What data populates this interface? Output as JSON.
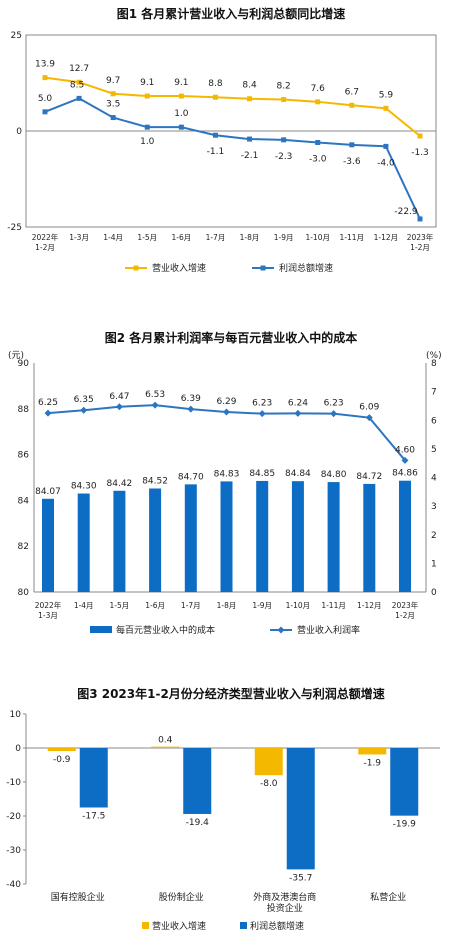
{
  "colors": {
    "yellow": "#F5B800",
    "blue": "#2E75C0",
    "bar_blue": "#0D6CC4"
  },
  "chart_data": [
    {
      "type": "line",
      "title": "图1 各月累计营业收入与利润总额同比增速",
      "categories": [
        "2022年 1-2月",
        "1-3月",
        "1-4月",
        "1-5月",
        "1-6月",
        "1-7月",
        "1-8月",
        "1-9月",
        "1-10月",
        "1-11月",
        "1-12月",
        "2023年 1-2月"
      ],
      "series": [
        {
          "name": "营业收入增速",
          "color": "#F5B800",
          "values": [
            13.9,
            12.7,
            9.7,
            9.1,
            9.1,
            8.8,
            8.4,
            8.2,
            7.6,
            6.7,
            5.9,
            -1.3
          ]
        },
        {
          "name": "利润总额增速",
          "color": "#2E75C0",
          "values": [
            5.0,
            8.5,
            3.5,
            1.0,
            1.0,
            -1.1,
            -2.1,
            -2.3,
            -3.0,
            -3.6,
            -4.0,
            -22.9
          ]
        }
      ],
      "ylim": [
        -25,
        25
      ],
      "yticks": [
        "25",
        "0",
        "-25"
      ],
      "legend_position": "bottom",
      "grid": false
    },
    {
      "type": "bar",
      "title": "图2 各月累计利润率与每百元营业收入中的成本",
      "left_unit": "(元)",
      "right_unit": "(%)",
      "categories": [
        "2022年 1-3月",
        "1-4月",
        "1-5月",
        "1-6月",
        "1-7月",
        "1-8月",
        "1-9月",
        "1-10月",
        "1-11月",
        "1-12月",
        "2023年 1-2月"
      ],
      "series": [
        {
          "name": "每百元营业收入中的成本",
          "type": "bar",
          "axis": "left",
          "color": "#0D6CC4",
          "values": [
            84.07,
            84.3,
            84.42,
            84.52,
            84.7,
            84.83,
            84.85,
            84.84,
            84.8,
            84.72,
            84.86
          ]
        },
        {
          "name": "营业收入利润率",
          "type": "line",
          "axis": "right",
          "color": "#2E75C0",
          "values": [
            6.25,
            6.35,
            6.47,
            6.53,
            6.39,
            6.29,
            6.23,
            6.24,
            6.23,
            6.09,
            4.6
          ]
        }
      ],
      "ylim_left": [
        80,
        90
      ],
      "yticks_left": [
        "80",
        "82",
        "84",
        "86",
        "88",
        "90"
      ],
      "ylim_right": [
        0,
        8
      ],
      "yticks_right": [
        "0",
        "1",
        "2",
        "3",
        "4",
        "5",
        "6",
        "7",
        "8"
      ],
      "legend_position": "bottom",
      "grid": false
    },
    {
      "type": "bar",
      "title": "图3 2023年1-2月份分经济类型营业收入与利润总额增速",
      "categories": [
        "国有控股企业",
        "股份制企业",
        "外商及港澳台商投资企业",
        "私营企业"
      ],
      "series": [
        {
          "name": "营业收入增速",
          "color": "#F5B800",
          "values": [
            -0.9,
            0.4,
            -8.0,
            -1.9
          ]
        },
        {
          "name": "利润总额增速",
          "color": "#0D6CC4",
          "values": [
            -17.5,
            -19.4,
            -35.7,
            -19.9
          ]
        }
      ],
      "ylim": [
        -40,
        10
      ],
      "yticks": [
        "10",
        "0",
        "-10",
        "-20",
        "-30",
        "-40"
      ],
      "legend_position": "bottom",
      "grid": false
    }
  ]
}
